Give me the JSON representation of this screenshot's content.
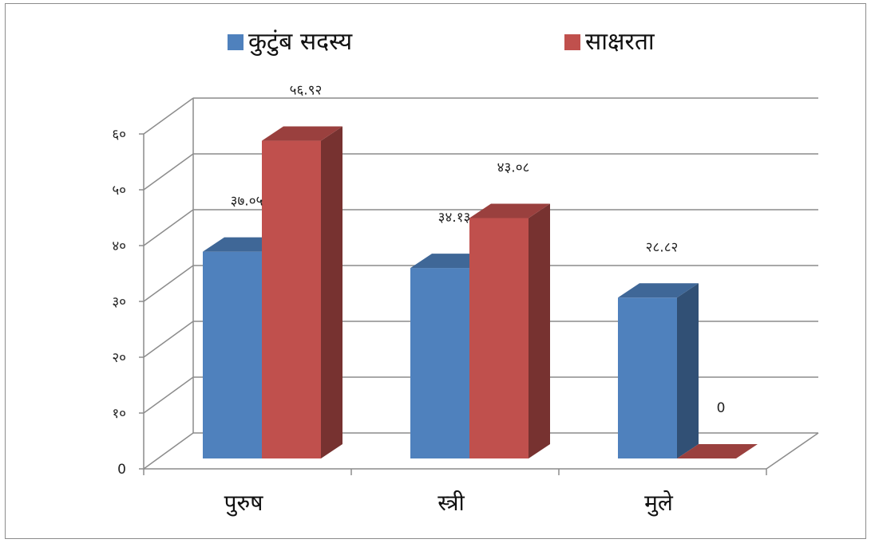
{
  "chart_data": {
    "type": "bar",
    "three_d": true,
    "categories": [
      "पुरुष",
      "स्त्री",
      "मुले"
    ],
    "series": [
      {
        "name": "कुटुंब सदस्य",
        "color": "#4f81bd",
        "values": [
          37.05,
          34.13,
          28.82
        ],
        "labels": [
          "३७.०५",
          "३४.१३",
          "२८.८२"
        ]
      },
      {
        "name": "साक्षरता",
        "color": "#c0504d",
        "values": [
          56.92,
          43.08,
          0
        ],
        "labels": [
          "५६.९२",
          "४३.०८",
          "0"
        ]
      }
    ],
    "ylim": [
      0,
      60
    ],
    "yticks": [
      0,
      10,
      20,
      30,
      40,
      50,
      60
    ],
    "ytick_labels": [
      "0",
      "१०",
      "२०",
      "३०",
      "४०",
      "५०",
      "६०"
    ],
    "grid": true,
    "legend_position": "top"
  }
}
